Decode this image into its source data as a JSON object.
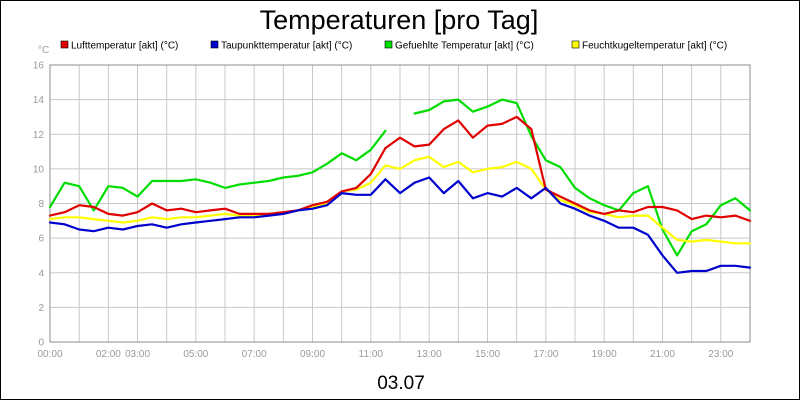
{
  "chart_data": {
    "type": "line",
    "title": "Temperaturen [pro Tag]",
    "footer": "03.07",
    "y_unit": "°C",
    "ylim": [
      0,
      16
    ],
    "y_ticks": [
      0,
      2,
      4,
      6,
      8,
      10,
      12,
      14,
      16
    ],
    "xlim": [
      0,
      24
    ],
    "x_ticks": [
      {
        "t": 0,
        "label": "00:00"
      },
      {
        "t": 2,
        "label": "02:00"
      },
      {
        "t": 3,
        "label": "03:00"
      },
      {
        "t": 5,
        "label": "05:00"
      },
      {
        "t": 7,
        "label": "07:00"
      },
      {
        "t": 9,
        "label": "09:00"
      },
      {
        "t": 11,
        "label": "11:00"
      },
      {
        "t": 13,
        "label": "13:00"
      },
      {
        "t": 15,
        "label": "15:00"
      },
      {
        "t": 17,
        "label": "17:00"
      },
      {
        "t": 19,
        "label": "19:00"
      },
      {
        "t": 21,
        "label": "21:00"
      },
      {
        "t": 23,
        "label": "23:00"
      }
    ],
    "grid": true,
    "legend_position": "top",
    "x_unit_note": "hours of day",
    "x": [
      0,
      0.5,
      1,
      1.5,
      2,
      2.5,
      3,
      3.5,
      4,
      4.5,
      5,
      5.5,
      6,
      6.5,
      7,
      7.5,
      8,
      8.5,
      9,
      9.5,
      10,
      10.5,
      11,
      11.5,
      12,
      12.5,
      13,
      13.5,
      14,
      14.5,
      15,
      15.5,
      16,
      16.5,
      17,
      17.5,
      18,
      18.5,
      19,
      19.5,
      20,
      20.5,
      21,
      21.5,
      22,
      22.5,
      23,
      23.5,
      24
    ],
    "series": [
      {
        "name": "Lufttemperatur [akt] (°C)",
        "color": "#e00000",
        "values": [
          7.3,
          7.5,
          7.9,
          7.8,
          7.4,
          7.3,
          7.5,
          8.0,
          7.6,
          7.7,
          7.5,
          7.6,
          7.7,
          7.4,
          7.4,
          7.4,
          7.5,
          7.6,
          7.9,
          8.1,
          8.7,
          8.9,
          9.7,
          11.2,
          11.8,
          11.3,
          11.4,
          12.3,
          12.8,
          11.8,
          12.5,
          12.6,
          13.0,
          12.3,
          8.8,
          8.4,
          8.0,
          7.6,
          7.4,
          7.6,
          7.5,
          7.8,
          7.8,
          7.6,
          7.1,
          7.3,
          7.2,
          7.3,
          7.0
        ],
        "gaps": []
      },
      {
        "name": "Taupunkttemperatur [akt] (°C)",
        "color": "#0000cc",
        "values": [
          6.9,
          6.8,
          6.5,
          6.4,
          6.6,
          6.5,
          6.7,
          6.8,
          6.6,
          6.8,
          6.9,
          7.0,
          7.1,
          7.2,
          7.2,
          7.3,
          7.4,
          7.6,
          7.7,
          7.9,
          8.6,
          8.5,
          8.5,
          9.4,
          8.6,
          9.2,
          9.5,
          8.6,
          9.3,
          8.3,
          8.6,
          8.4,
          8.9,
          8.3,
          8.9,
          8.0,
          7.7,
          7.3,
          7.0,
          6.6,
          6.6,
          6.2,
          5.0,
          4.0,
          4.1,
          4.1,
          4.4,
          4.4,
          4.3
        ],
        "gaps": []
      },
      {
        "name": "Gefuehlte Temperatur [akt] (°C)",
        "color": "#00dd00",
        "values": [
          7.8,
          9.2,
          9.0,
          7.6,
          9.0,
          8.9,
          8.4,
          9.3,
          9.3,
          9.3,
          9.4,
          9.2,
          8.9,
          9.1,
          9.2,
          9.3,
          9.5,
          9.6,
          9.8,
          10.3,
          10.9,
          10.5,
          11.1,
          12.2,
          12.6,
          13.2,
          13.4,
          13.9,
          14.0,
          13.3,
          13.6,
          14.0,
          13.8,
          11.9,
          10.5,
          10.1,
          8.9,
          8.3,
          7.9,
          7.6,
          8.6,
          9.0,
          6.5,
          5.0,
          6.4,
          6.8,
          7.9,
          8.3,
          7.6
        ],
        "gaps": [
          [
            11.8,
            12.1
          ],
          [
            16.9,
            17.0
          ]
        ]
      },
      {
        "name": "Feuchtkugeltemperatur [akt] (°C)",
        "color": "#ffff00",
        "values": [
          7.1,
          7.2,
          7.2,
          7.1,
          7.0,
          6.9,
          7.0,
          7.2,
          7.1,
          7.2,
          7.2,
          7.3,
          7.4,
          7.3,
          7.3,
          7.4,
          7.4,
          7.6,
          7.8,
          8.0,
          8.7,
          8.8,
          9.2,
          10.2,
          10.0,
          10.5,
          10.7,
          10.1,
          10.4,
          9.8,
          10.0,
          10.1,
          10.4,
          10.0,
          8.8,
          8.2,
          7.9,
          7.5,
          7.4,
          7.2,
          7.3,
          7.3,
          6.6,
          5.9,
          5.8,
          5.9,
          5.8,
          5.7,
          5.7
        ],
        "gaps": []
      }
    ]
  }
}
